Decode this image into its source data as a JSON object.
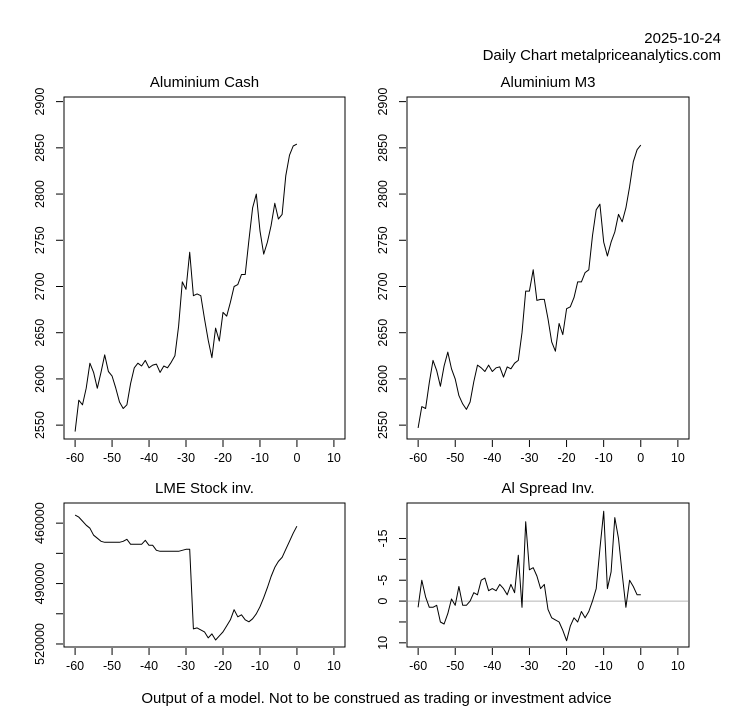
{
  "header": {
    "date": "2025-10-24",
    "source": "Daily Chart metalpriceanalytics.com"
  },
  "footer": "Output of a model. Not to be construed as trading or investment advice",
  "chart_data": [
    {
      "type": "line",
      "title": "Aluminium Cash",
      "xlabel": "",
      "ylabel": "",
      "xlim": [
        -63,
        13
      ],
      "ylim": [
        2535,
        2905
      ],
      "xticks": [
        -60,
        -50,
        -40,
        -30,
        -20,
        -10,
        0,
        10
      ],
      "yticks": [
        2550,
        2600,
        2650,
        2700,
        2750,
        2800,
        2850,
        2900
      ],
      "reverse_y": false,
      "x": [
        -60,
        -59,
        -58,
        -57,
        -56,
        -55,
        -54,
        -53,
        -52,
        -51,
        -50,
        -49,
        -48,
        -47,
        -46,
        -45,
        -44,
        -43,
        -42,
        -41,
        -40,
        -39,
        -38,
        -37,
        -36,
        -35,
        -34,
        -33,
        -32,
        -31,
        -30,
        -29,
        -28,
        -27,
        -26,
        -25,
        -24,
        -23,
        -22,
        -21,
        -20,
        -19,
        -18,
        -17,
        -16,
        -15,
        -14,
        -13,
        -12,
        -11,
        -10,
        -9,
        -8,
        -7,
        -6,
        -5,
        -4,
        -3,
        -2,
        -1,
        0
      ],
      "values": [
        2543,
        2577,
        2572,
        2590,
        2617,
        2607,
        2590,
        2607,
        2626,
        2608,
        2603,
        2590,
        2575,
        2568,
        2572,
        2595,
        2612,
        2617,
        2614,
        2620,
        2612,
        2615,
        2616,
        2607,
        2614,
        2612,
        2618,
        2625,
        2657,
        2705,
        2697,
        2737,
        2690,
        2692,
        2690,
        2665,
        2642,
        2623,
        2655,
        2641,
        2672,
        2668,
        2683,
        2700,
        2702,
        2713,
        2713,
        2750,
        2785,
        2800,
        2760,
        2735,
        2748,
        2766,
        2790,
        2773,
        2778,
        2820,
        2842,
        2852,
        2854
      ]
    },
    {
      "type": "line",
      "title": "Aluminium M3",
      "xlabel": "",
      "ylabel": "",
      "xlim": [
        -63,
        13
      ],
      "ylim": [
        2535,
        2905
      ],
      "xticks": [
        -60,
        -50,
        -40,
        -30,
        -20,
        -10,
        0,
        10
      ],
      "yticks": [
        2550,
        2600,
        2650,
        2700,
        2750,
        2800,
        2850,
        2900
      ],
      "reverse_y": false,
      "x": [
        -60,
        -59,
        -58,
        -57,
        -56,
        -55,
        -54,
        -53,
        -52,
        -51,
        -50,
        -49,
        -48,
        -47,
        -46,
        -45,
        -44,
        -43,
        -42,
        -41,
        -40,
        -39,
        -38,
        -37,
        -36,
        -35,
        -34,
        -33,
        -32,
        -31,
        -30,
        -29,
        -28,
        -27,
        -26,
        -25,
        -24,
        -23,
        -22,
        -21,
        -20,
        -19,
        -18,
        -17,
        -16,
        -15,
        -14,
        -13,
        -12,
        -11,
        -10,
        -9,
        -8,
        -7,
        -6,
        -5,
        -4,
        -3,
        -2,
        -1,
        0
      ],
      "values": [
        2547,
        2570,
        2568,
        2596,
        2620,
        2609,
        2592,
        2614,
        2629,
        2611,
        2600,
        2582,
        2573,
        2567,
        2575,
        2597,
        2615,
        2612,
        2608,
        2615,
        2608,
        2612,
        2613,
        2602,
        2613,
        2611,
        2617,
        2620,
        2650,
        2695,
        2695,
        2718,
        2685,
        2686,
        2686,
        2665,
        2640,
        2630,
        2660,
        2648,
        2676,
        2678,
        2688,
        2705,
        2705,
        2715,
        2718,
        2755,
        2783,
        2789,
        2748,
        2733,
        2748,
        2759,
        2778,
        2770,
        2785,
        2808,
        2835,
        2848,
        2853
      ]
    },
    {
      "type": "line",
      "title": "LME Stock inv.",
      "xlabel": "",
      "ylabel": "",
      "xlim": [
        -63,
        13
      ],
      "ylim": [
        521500,
        450000
      ],
      "xticks": [
        -60,
        -50,
        -40,
        -30,
        -20,
        -10,
        0,
        10
      ],
      "yticks": [
        460000,
        490000,
        520000
      ],
      "yticks_minor": [
        475000,
        505000
      ],
      "reverse_y": true,
      "x": [
        -60,
        -59,
        -58,
        -57,
        -56,
        -55,
        -54,
        -53,
        -52,
        -51,
        -50,
        -49,
        -48,
        -47,
        -46,
        -45,
        -44,
        -43,
        -42,
        -41,
        -40,
        -39,
        -38,
        -37,
        -36,
        -35,
        -34,
        -33,
        -32,
        -31,
        -30,
        -29,
        -28,
        -27,
        -26,
        -25,
        -24,
        -23,
        -22,
        -21,
        -20,
        -19,
        -18,
        -17,
        -16,
        -15,
        -14,
        -13,
        -12,
        -11,
        -10,
        -9,
        -8,
        -7,
        -6,
        -5,
        -4,
        -3,
        -2,
        -1,
        0
      ],
      "values": [
        456000,
        457000,
        459000,
        461000,
        462500,
        466000,
        467500,
        469000,
        469500,
        469500,
        469500,
        469500,
        469500,
        469000,
        468000,
        470500,
        470500,
        470500,
        470500,
        468500,
        471000,
        471000,
        473500,
        474000,
        474000,
        474000,
        474000,
        474000,
        474000,
        473500,
        473000,
        473000,
        512500,
        512000,
        513000,
        514000,
        517000,
        515000,
        518000,
        516000,
        514000,
        511000,
        508000,
        503000,
        506500,
        505500,
        508000,
        509000,
        507500,
        505000,
        501500,
        497000,
        492000,
        486500,
        482000,
        479000,
        477000,
        473000,
        469000,
        465000,
        461500
      ]
    },
    {
      "type": "line",
      "title": "Al Spread Inv.",
      "xlabel": "",
      "ylabel": "",
      "xlim": [
        -63,
        13
      ],
      "ylim": [
        11,
        -23.5
      ],
      "xticks": [
        -60,
        -50,
        -40,
        -30,
        -20,
        -10,
        0,
        10
      ],
      "yticks": [
        -15,
        -5,
        0,
        10
      ],
      "yticks_minor": [
        -10,
        5
      ],
      "reverse_y": true,
      "zero_line": true,
      "x": [
        -60,
        -59,
        -58,
        -57,
        -56,
        -55,
        -54,
        -53,
        -52,
        -51,
        -50,
        -49,
        -48,
        -47,
        -46,
        -45,
        -44,
        -43,
        -42,
        -41,
        -40,
        -39,
        -38,
        -37,
        -36,
        -35,
        -34,
        -33,
        -32,
        -31,
        -30,
        -29,
        -28,
        -27,
        -26,
        -25,
        -24,
        -23,
        -22,
        -21,
        -20,
        -19,
        -18,
        -17,
        -16,
        -15,
        -14,
        -13,
        -12,
        -11,
        -10,
        -9,
        -8,
        -7,
        -6,
        -5,
        -4,
        -3,
        -2,
        -1,
        0
      ],
      "values": [
        1.5,
        -5,
        -1,
        1.5,
        1.5,
        1,
        5,
        5.5,
        3,
        -0.5,
        1,
        -3.5,
        1,
        1,
        0,
        -2,
        -1.5,
        -5,
        -5.5,
        -2.5,
        -3,
        -2.5,
        -4,
        -3,
        -1.5,
        -4,
        -2,
        -11,
        1.5,
        -19,
        -7.5,
        -8,
        -6,
        -3,
        -4,
        2,
        4,
        4.5,
        5,
        7,
        9.5,
        6,
        4,
        5,
        2.5,
        4,
        2.5,
        0,
        -3,
        -12.5,
        -21.5,
        -3,
        -7,
        -20,
        -15,
        -6.5,
        1.5,
        -5,
        -3.5,
        -1.5,
        -1.5
      ]
    }
  ]
}
